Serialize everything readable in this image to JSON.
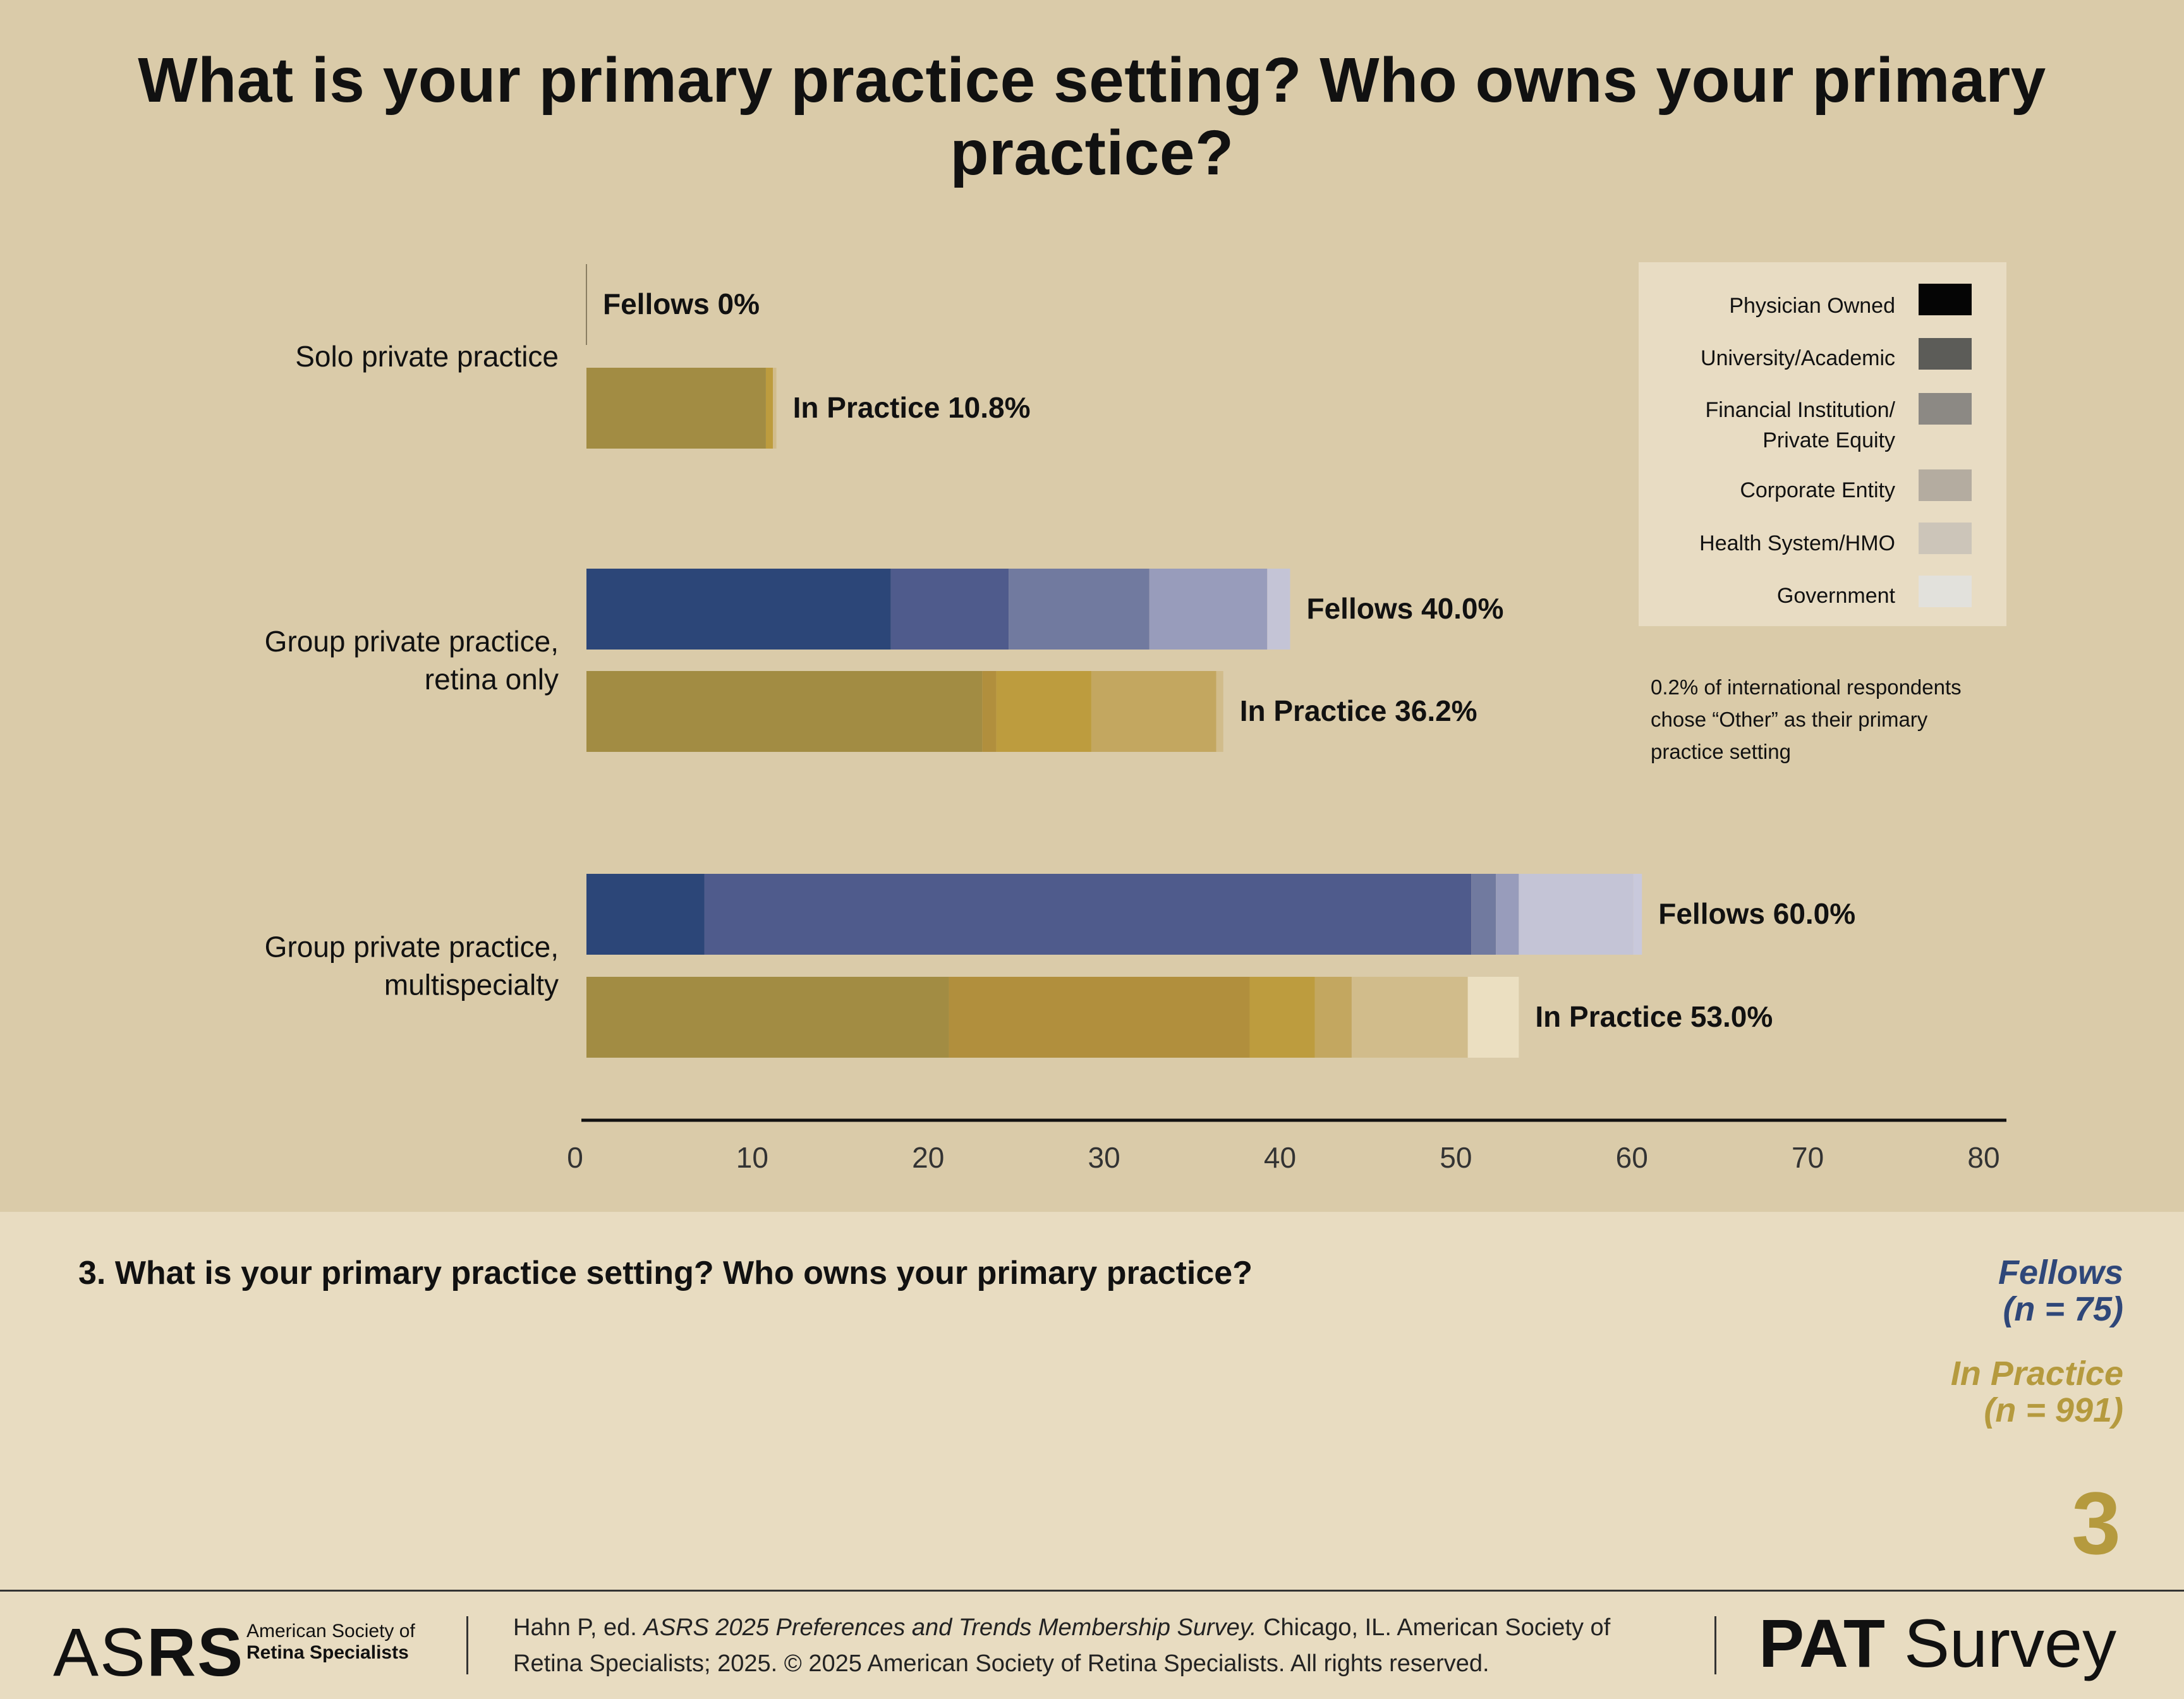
{
  "header": {
    "title": "What is your primary practice setting? Who owns your primary practice?"
  },
  "chart_data": {
    "type": "bar",
    "orientation": "horizontal",
    "stacked": true,
    "title": "What is your primary practice setting? Who owns your primary practice?",
    "xlim": [
      0,
      80
    ],
    "x_ticks": [
      "0",
      "10",
      "20",
      "30",
      "40",
      "50",
      "60",
      "70",
      "80"
    ],
    "categories": [
      "Solo private practice",
      "Group private practice,\nretina only",
      "Group private practice,\nmultispecialty"
    ],
    "ownership_types": [
      "Physician Owned",
      "University/Academic",
      "Financial Institution/\nPrivate Equity",
      "Corporate Entity",
      "Health System/HMO",
      "Government"
    ],
    "legend": {
      "placement": "top-right",
      "entries": [
        {
          "label": "Physician Owned",
          "color": "#050505"
        },
        {
          "label": "University/Academic",
          "color": "#5c5c58"
        },
        {
          "label": "Financial Institution/\nPrivate Equity",
          "color": "#8c8984"
        },
        {
          "label": "Corporate Entity",
          "color": "#b4aca0"
        },
        {
          "label": "Health System/HMO",
          "color": "#ccc5b9"
        },
        {
          "label": "Government",
          "color": "#e2e1dc"
        }
      ]
    },
    "colors": {
      "fellows": [
        "#2c4678",
        "#4f5b8c",
        "#717a9f",
        "#989cbb",
        "#c4c4d6",
        "#c9c9dc"
      ],
      "in_practice": [
        "#a28c43",
        "#b18f3d",
        "#bd9c3e",
        "#c3a760",
        "#d1bc8b",
        "#ebdfc1"
      ]
    },
    "groups": [
      {
        "category": "Solo private practice",
        "bars": [
          {
            "name": "Fellows",
            "label": "Fellows 0%",
            "total": 0.0,
            "segments": [
              0,
              0,
              0,
              0,
              0,
              0
            ]
          },
          {
            "name": "In Practice",
            "label": "In Practice 10.8%",
            "total": 10.8,
            "segments": [
              10.2,
              0,
              0.4,
              0,
              0.2,
              0
            ]
          }
        ]
      },
      {
        "category": "Group private practice,\nretina only",
        "bars": [
          {
            "name": "Fellows",
            "label": "Fellows 40.0%",
            "total": 40.0,
            "segments": [
              17.3,
              6.7,
              8.0,
              6.7,
              1.3,
              0
            ]
          },
          {
            "name": "In Practice",
            "label": "In Practice 36.2%",
            "total": 36.2,
            "segments": [
              22.5,
              0.8,
              5.4,
              7.1,
              0.4,
              0
            ]
          }
        ]
      },
      {
        "category": "Group private practice,\nmultispecialty",
        "bars": [
          {
            "name": "Fellows",
            "label": "Fellows 60.0%",
            "total": 60.0,
            "segments": [
              6.7,
              43.6,
              1.4,
              1.3,
              6.5,
              0.5
            ]
          },
          {
            "name": "In Practice",
            "label": "In Practice 53.0%",
            "total": 53.0,
            "segments": [
              20.6,
              17.1,
              3.7,
              2.1,
              6.6,
              2.9
            ]
          }
        ]
      }
    ],
    "annotation": "0.2% of international respondents\nchose “Other” as their primary\npractice setting"
  },
  "question": {
    "text": "3. What is your primary practice setting? Who owns your primary practice?"
  },
  "samples": {
    "fellows_label": "Fellows",
    "fellows_n": "(n = 75)",
    "fellows_color": "#2f4779",
    "in_practice_label": "In Practice",
    "in_practice_n": "(n = 991)",
    "in_practice_color": "#b59a3e"
  },
  "page_number": "3",
  "footer": {
    "logo_light": "AS",
    "logo_bold": "RS",
    "logo_sub_line1": "American Society of",
    "logo_sub_line2": "Retina Specialists",
    "citation_prefix": "Hahn P, ed. ",
    "citation_title": "ASRS 2025 Preferences and Trends Membership Survey.",
    "citation_rest": " Chicago, IL. American Society of Retina Specialists; 2025. © 2025 American Society of Retina Specialists. All rights reserved.",
    "survey_bold": "PAT",
    "survey_light": " Survey"
  }
}
